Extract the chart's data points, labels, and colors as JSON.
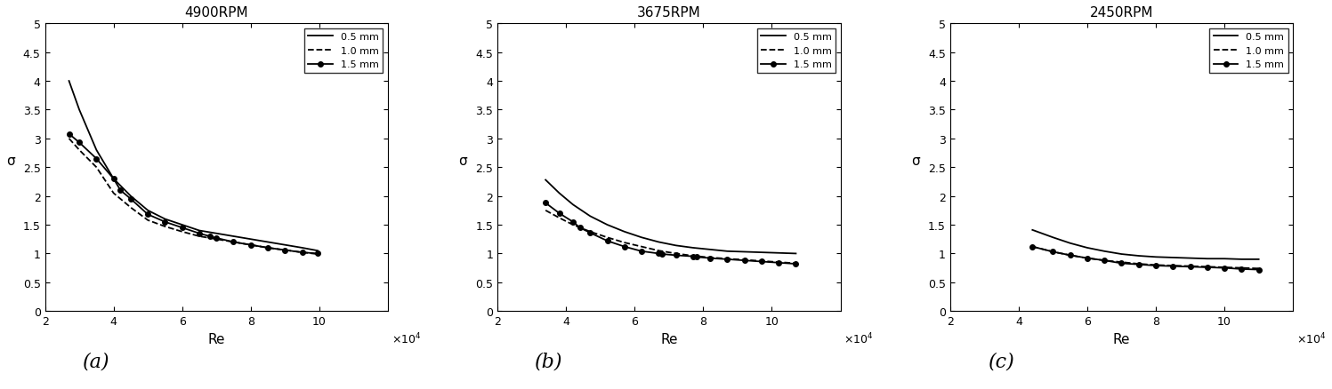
{
  "subplots": [
    {
      "title": "4900RPM",
      "label": "(a)",
      "ylabel": "σ",
      "xlabel": "Re",
      "xlim": [
        20000,
        120000
      ],
      "ylim": [
        0,
        5
      ],
      "xticks": [
        20000,
        40000,
        60000,
        80000,
        100000
      ],
      "xticklabels": [
        "2",
        "4",
        "6",
        "8",
        "10"
      ],
      "yticks": [
        0,
        0.5,
        1.0,
        1.5,
        2.0,
        2.5,
        3.0,
        3.5,
        4.0,
        4.5,
        5.0
      ],
      "yticklabels": [
        "0",
        "0.5",
        "1",
        "1.5",
        "2",
        "2.5",
        "3",
        "3.5",
        "4",
        "4.5",
        "5"
      ],
      "series": [
        {
          "label": "0.5 mm",
          "style": "solid",
          "marker": null,
          "markersize": 0,
          "x": [
            27000,
            30000,
            35000,
            40000,
            45000,
            50000,
            55000,
            60000,
            65000,
            70000,
            75000,
            80000,
            85000,
            90000,
            95000,
            99500
          ],
          "y": [
            4.0,
            3.5,
            2.8,
            2.3,
            2.0,
            1.75,
            1.6,
            1.5,
            1.4,
            1.35,
            1.3,
            1.25,
            1.2,
            1.15,
            1.1,
            1.05
          ]
        },
        {
          "label": "1.0 mm",
          "style": "dashed",
          "marker": null,
          "markersize": 0,
          "x": [
            27000,
            30000,
            35000,
            40000,
            45000,
            50000,
            55000,
            60000,
            65000,
            70000,
            75000,
            80000,
            85000,
            90000,
            95000,
            99500
          ],
          "y": [
            3.0,
            2.8,
            2.5,
            2.05,
            1.8,
            1.58,
            1.47,
            1.38,
            1.3,
            1.25,
            1.2,
            1.15,
            1.1,
            1.06,
            1.02,
            0.99
          ]
        },
        {
          "label": "1.5 mm",
          "style": "solid",
          "marker": "o",
          "markersize": 4,
          "x": [
            27000,
            30000,
            35000,
            40000,
            42000,
            45000,
            50000,
            55000,
            60000,
            65000,
            68000,
            70000,
            75000,
            80000,
            85000,
            90000,
            95000,
            99500
          ],
          "y": [
            3.08,
            2.93,
            2.65,
            2.3,
            2.1,
            1.95,
            1.68,
            1.55,
            1.45,
            1.35,
            1.3,
            1.27,
            1.2,
            1.15,
            1.1,
            1.06,
            1.02,
            1.0
          ]
        }
      ]
    },
    {
      "title": "3675RPM",
      "label": "(b)",
      "ylabel": "σ",
      "xlabel": "Re",
      "xlim": [
        20000,
        120000
      ],
      "ylim": [
        0,
        5
      ],
      "xticks": [
        20000,
        40000,
        60000,
        80000,
        100000
      ],
      "xticklabels": [
        "2",
        "4",
        "6",
        "8",
        "10"
      ],
      "yticks": [
        0,
        0.5,
        1.0,
        1.5,
        2.0,
        2.5,
        3.0,
        3.5,
        4.0,
        4.5,
        5.0
      ],
      "yticklabels": [
        "0",
        "0.5",
        "1",
        "1.5",
        "2",
        "2.5",
        "3",
        "3.5",
        "4",
        "4.5",
        "5"
      ],
      "series": [
        {
          "label": "0.5 mm",
          "style": "solid",
          "marker": null,
          "markersize": 0,
          "x": [
            34000,
            38000,
            42000,
            47000,
            52000,
            57000,
            62000,
            67000,
            72000,
            77000,
            82000,
            87000,
            92000,
            97000,
            102000,
            107000
          ],
          "y": [
            2.28,
            2.05,
            1.85,
            1.65,
            1.5,
            1.38,
            1.28,
            1.2,
            1.14,
            1.1,
            1.07,
            1.04,
            1.03,
            1.02,
            1.01,
            1.0
          ]
        },
        {
          "label": "1.0 mm",
          "style": "dashed",
          "marker": null,
          "markersize": 0,
          "x": [
            34000,
            38000,
            42000,
            47000,
            52000,
            57000,
            62000,
            67000,
            72000,
            77000,
            82000,
            87000,
            92000,
            97000,
            102000,
            107000
          ],
          "y": [
            1.75,
            1.62,
            1.5,
            1.38,
            1.28,
            1.19,
            1.12,
            1.05,
            1.0,
            0.96,
            0.93,
            0.91,
            0.89,
            0.87,
            0.85,
            0.83
          ]
        },
        {
          "label": "1.5 mm",
          "style": "solid",
          "marker": "o",
          "markersize": 4,
          "x": [
            34000,
            38000,
            42000,
            44000,
            47000,
            52000,
            57000,
            62000,
            67000,
            68000,
            72000,
            77000,
            78000,
            82000,
            87000,
            92000,
            97000,
            102000,
            107000
          ],
          "y": [
            1.88,
            1.7,
            1.55,
            1.45,
            1.36,
            1.22,
            1.12,
            1.04,
            1.0,
            0.99,
            0.97,
            0.95,
            0.94,
            0.92,
            0.9,
            0.88,
            0.86,
            0.84,
            0.82
          ]
        }
      ]
    },
    {
      "title": "2450RPM",
      "label": "(c)",
      "ylabel": "σ",
      "xlabel": "Re",
      "xlim": [
        20000,
        120000
      ],
      "ylim": [
        0,
        5
      ],
      "xticks": [
        20000,
        40000,
        60000,
        80000,
        100000
      ],
      "xticklabels": [
        "2",
        "4",
        "6",
        "8",
        "10"
      ],
      "yticks": [
        0,
        0.5,
        1.0,
        1.5,
        2.0,
        2.5,
        3.0,
        3.5,
        4.0,
        4.5,
        5.0
      ],
      "yticklabels": [
        "0",
        "0.5",
        "1",
        "1.5",
        "2",
        "2.5",
        "3",
        "3.5",
        "4",
        "4.5",
        "5"
      ],
      "series": [
        {
          "label": "0.5 mm",
          "style": "solid",
          "marker": null,
          "markersize": 0,
          "x": [
            44000,
            50000,
            55000,
            60000,
            65000,
            70000,
            75000,
            80000,
            85000,
            90000,
            95000,
            100000,
            105000,
            110000
          ],
          "y": [
            1.41,
            1.28,
            1.18,
            1.1,
            1.04,
            0.99,
            0.96,
            0.94,
            0.93,
            0.92,
            0.91,
            0.91,
            0.9,
            0.9
          ]
        },
        {
          "label": "1.0 mm",
          "style": "dashed",
          "marker": null,
          "markersize": 0,
          "x": [
            44000,
            50000,
            55000,
            60000,
            65000,
            70000,
            75000,
            80000,
            85000,
            90000,
            95000,
            100000,
            105000,
            110000
          ],
          "y": [
            1.12,
            1.03,
            0.97,
            0.92,
            0.88,
            0.85,
            0.82,
            0.8,
            0.79,
            0.78,
            0.77,
            0.76,
            0.75,
            0.74
          ]
        },
        {
          "label": "1.5 mm",
          "style": "solid",
          "marker": "o",
          "markersize": 4,
          "x": [
            44000,
            50000,
            55000,
            60000,
            65000,
            70000,
            75000,
            80000,
            85000,
            90000,
            95000,
            100000,
            105000,
            110000
          ],
          "y": [
            1.12,
            1.03,
            0.97,
            0.92,
            0.88,
            0.83,
            0.81,
            0.79,
            0.78,
            0.77,
            0.76,
            0.75,
            0.73,
            0.72
          ]
        }
      ]
    }
  ],
  "line_color": "#000000",
  "marker_size": 4,
  "linewidth": 1.3,
  "legend_fontsize": 8,
  "axis_label_fontsize": 11,
  "tick_fontsize": 9,
  "title_fontsize": 11,
  "label_fontsize": 16,
  "background_color": "#ffffff"
}
